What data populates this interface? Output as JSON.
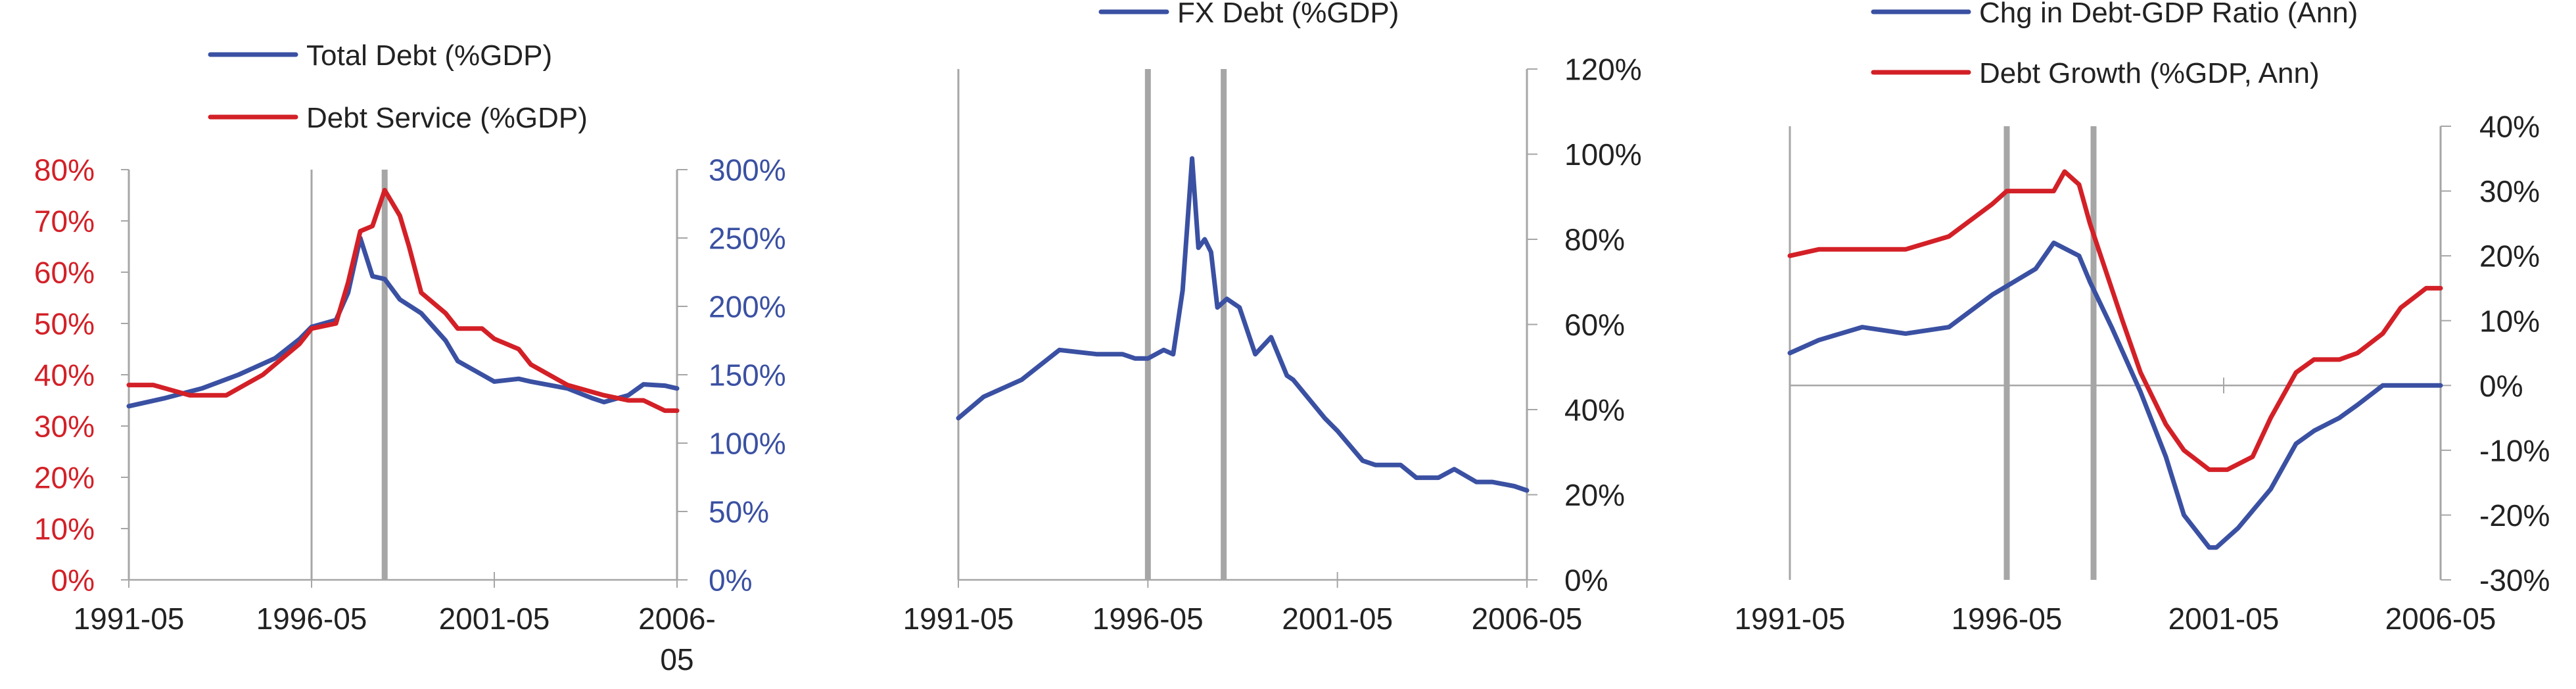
{
  "colors": {
    "red": "#D32027",
    "blue": "#3A50A2",
    "axis": "#A6A6A6",
    "text": "#222222"
  },
  "chart_data": [
    {
      "type": "line",
      "dual_axis": true,
      "x_range": [
        "1991-05",
        "2006-05"
      ],
      "x_tick_labels": [
        "1991-05",
        "1996-05",
        "2001-05",
        "2006-05"
      ],
      "y_left_range": [
        0,
        80
      ],
      "y_left_ticks": [
        "0%",
        "10%",
        "20%",
        "30%",
        "40%",
        "50%",
        "60%",
        "70%",
        "80%"
      ],
      "y_right_range": [
        0,
        300
      ],
      "y_right_ticks": [
        "0%",
        "50%",
        "100%",
        "150%",
        "200%",
        "250%",
        "300%"
      ],
      "vertical_markers": [
        "1996-05",
        "1998-05"
      ],
      "legend": [
        "Total Debt (%GDP)",
        "Debt Service (%GDP)"
      ],
      "series": [
        {
          "name": "Total Debt (%GDP)",
          "axis": "right",
          "color": "#3A50A2",
          "x": [
            "1991-05",
            "1992-05",
            "1993-05",
            "1994-05",
            "1995-05",
            "1996-01",
            "1996-05",
            "1997-01",
            "1997-05",
            "1997-09",
            "1998-01",
            "1998-05",
            "1998-10",
            "1999-05",
            "2000-01",
            "2000-05",
            "2001-01",
            "2001-05",
            "2002-01",
            "2002-05",
            "2003-05",
            "2004-01",
            "2004-05",
            "2005-01",
            "2005-06",
            "2006-01",
            "2006-05"
          ],
          "values": [
            127,
            133,
            140,
            150,
            162,
            176,
            185,
            190,
            210,
            250,
            222,
            220,
            205,
            195,
            175,
            160,
            150,
            145,
            147,
            145,
            140,
            133,
            130,
            135,
            143,
            142,
            140
          ]
        },
        {
          "name": "Debt Service (%GDP)",
          "axis": "left",
          "color": "#D32027",
          "x": [
            "1991-05",
            "1992-01",
            "1993-01",
            "1994-01",
            "1995-01",
            "1996-01",
            "1996-05",
            "1997-01",
            "1997-05",
            "1997-09",
            "1998-01",
            "1998-05",
            "1998-10",
            "1999-01",
            "1999-05",
            "2000-01",
            "2000-05",
            "2001-01",
            "2001-05",
            "2002-01",
            "2002-05",
            "2003-05",
            "2004-05",
            "2005-01",
            "2005-06",
            "2006-01",
            "2006-05"
          ],
          "values": [
            38,
            38,
            36,
            36,
            40,
            46,
            49,
            50,
            58,
            68,
            69,
            76,
            71,
            65,
            56,
            52,
            49,
            49,
            47,
            45,
            42,
            38,
            36,
            35,
            35,
            33,
            33
          ]
        }
      ]
    },
    {
      "type": "line",
      "x_range": [
        "1991-05",
        "2006-05"
      ],
      "x_tick_labels": [
        "1991-05",
        "1996-05",
        "2001-05",
        "2006-05"
      ],
      "y_range": [
        0,
        120
      ],
      "y_ticks": [
        "0%",
        "20%",
        "40%",
        "60%",
        "80%",
        "100%",
        "120%"
      ],
      "vertical_markers": [
        "1996-05",
        "1998-05"
      ],
      "legend": [
        "FX Debt (%GDP)"
      ],
      "series": [
        {
          "name": "FX Debt (%GDP)",
          "axis": "right",
          "color": "#3A50A2",
          "x": [
            "1991-05",
            "1992-01",
            "1993-01",
            "1994-01",
            "1995-01",
            "1995-09",
            "1996-01",
            "1996-05",
            "1996-10",
            "1997-01",
            "1997-04",
            "1997-07",
            "1997-09",
            "1997-11",
            "1998-01",
            "1998-03",
            "1998-06",
            "1998-10",
            "1999-03",
            "1999-08",
            "2000-01",
            "2000-03",
            "2001-01",
            "2001-05",
            "2002-01",
            "2002-05",
            "2003-01",
            "2003-06",
            "2004-01",
            "2004-06",
            "2005-01",
            "2005-06",
            "2006-01",
            "2006-05"
          ],
          "values": [
            38,
            43,
            47,
            54,
            53,
            53,
            52,
            52,
            54,
            53,
            68,
            99,
            78,
            80,
            77,
            64,
            66,
            64,
            53,
            57,
            48,
            47,
            38,
            35,
            28,
            27,
            27,
            24,
            24,
            26,
            23,
            23,
            22,
            21
          ]
        }
      ]
    },
    {
      "type": "line",
      "x_range": [
        "1991-05",
        "2006-05"
      ],
      "x_tick_labels": [
        "1991-05",
        "1996-05",
        "2001-05",
        "2006-05"
      ],
      "y_range": [
        -30,
        40
      ],
      "y_ticks": [
        "-30%",
        "-20%",
        "-10%",
        "0%",
        "10%",
        "20%",
        "30%",
        "40%"
      ],
      "vertical_markers": [
        "1996-05",
        "1998-05"
      ],
      "legend": [
        "Chg in Debt-GDP Ratio (Ann)",
        "Debt Growth (%GDP, Ann)"
      ],
      "series": [
        {
          "name": "Chg in Debt-GDP Ratio (Ann)",
          "axis": "right",
          "color": "#3A50A2",
          "x": [
            "1991-05",
            "1992-01",
            "1993-01",
            "1994-01",
            "1995-01",
            "1996-01",
            "1997-01",
            "1997-06",
            "1998-01",
            "1998-04",
            "1998-10",
            "1999-06",
            "2000-01",
            "2000-06",
            "2001-01",
            "2001-03",
            "2001-09",
            "2002-06",
            "2003-01",
            "2003-06",
            "2004-01",
            "2004-06",
            "2005-01",
            "2005-06",
            "2006-01",
            "2006-05"
          ],
          "values": [
            5,
            7,
            9,
            8,
            9,
            14,
            18,
            22,
            20,
            16,
            9,
            -1,
            -11,
            -20,
            -25,
            -25,
            -22,
            -16,
            -9,
            -7,
            -5,
            -3,
            0,
            0,
            0,
            0
          ]
        },
        {
          "name": "Debt Growth (%GDP, Ann)",
          "axis": "right",
          "color": "#D32027",
          "x": [
            "1991-05",
            "1992-01",
            "1993-01",
            "1994-01",
            "1995-01",
            "1996-01",
            "1996-05",
            "1997-01",
            "1997-06",
            "1997-09",
            "1998-01",
            "1998-04",
            "1999-01",
            "1999-06",
            "2000-01",
            "2000-06",
            "2001-01",
            "2001-06",
            "2002-01",
            "2002-06",
            "2003-01",
            "2003-06",
            "2004-01",
            "2004-06",
            "2005-01",
            "2005-06",
            "2006-01",
            "2006-05"
          ],
          "values": [
            20,
            21,
            21,
            21,
            23,
            28,
            30,
            30,
            30,
            33,
            31,
            25,
            10,
            2,
            -6,
            -10,
            -13,
            -13,
            -11,
            -5,
            2,
            4,
            4,
            5,
            8,
            12,
            15,
            15
          ]
        }
      ]
    }
  ]
}
